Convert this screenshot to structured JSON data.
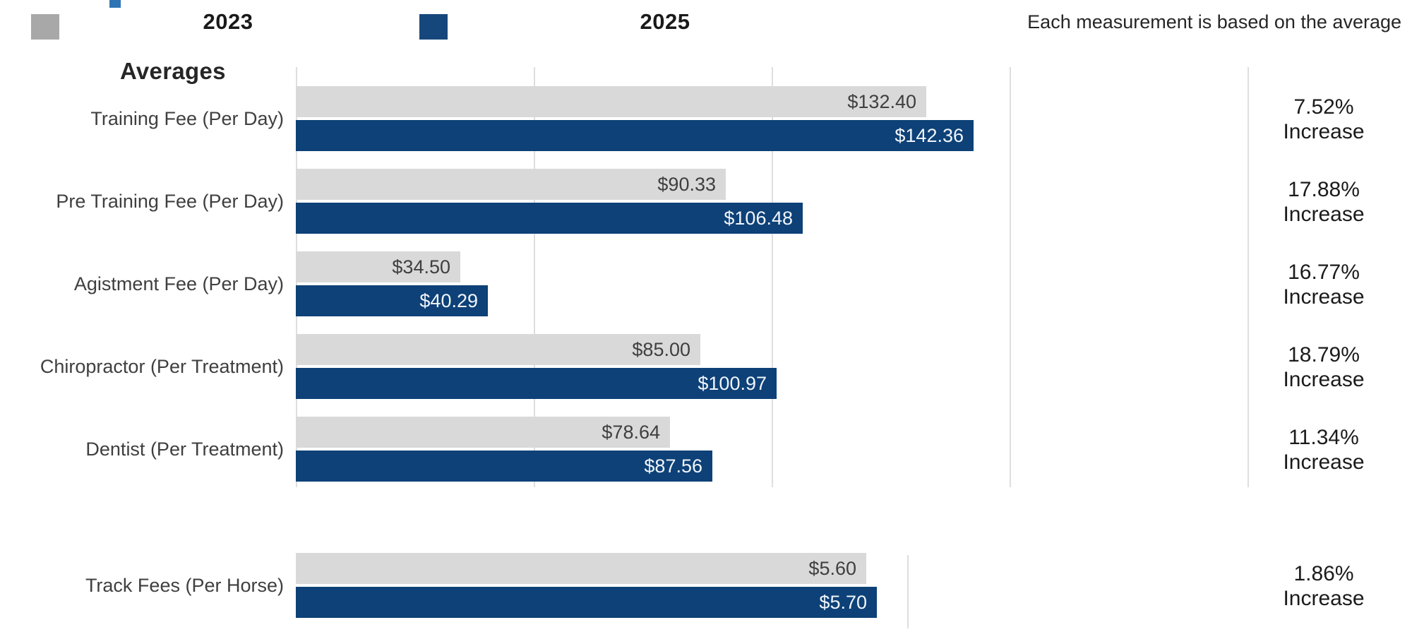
{
  "legend": {
    "items": [
      {
        "label": "2023",
        "swatch_color": "#a8a8a8"
      },
      {
        "label": "2025",
        "swatch_color": "#16477c"
      }
    ]
  },
  "note": "Each measurement is based on the average",
  "section_title": "Averages",
  "colors": {
    "bar_2023": "#d9d9d9",
    "bar_2025": "#0d4177",
    "value_label_on_2023": "#3f3f3f",
    "value_label_on_2025": "#f1f5fb",
    "gridline": "#dedede",
    "logo_fragment": "#2e74b5"
  },
  "chart_data": {
    "type": "bar",
    "orientation": "horizontal",
    "series_names": [
      "2023",
      "2025"
    ],
    "series_colors": [
      "#d9d9d9",
      "#0d4177"
    ],
    "value_label_colors": [
      "#3f3f3f",
      "#f1f5fb"
    ],
    "axes": {
      "main": {
        "min": 0,
        "max": 200,
        "gridline_step": 50,
        "gridlines_at": [
          0,
          50,
          100,
          150,
          200
        ]
      },
      "track": {
        "min": 0,
        "gridlines_at": [
          6
        ]
      }
    },
    "legend_position": "top",
    "grid": "vertical-only",
    "rows": [
      {
        "category": "Training Fee (Per Day)",
        "axis": "main",
        "values": [
          132.4,
          142.36
        ],
        "value_labels": [
          "$132.40",
          "$142.36"
        ],
        "change_pct": "7.52%",
        "change_word": "Increase"
      },
      {
        "category": "Pre Training Fee (Per Day)",
        "axis": "main",
        "values": [
          90.33,
          106.48
        ],
        "value_labels": [
          "$90.33",
          "$106.48"
        ],
        "change_pct": "17.88%",
        "change_word": "Increase"
      },
      {
        "category": "Agistment Fee (Per Day)",
        "axis": "main",
        "values": [
          34.5,
          40.29
        ],
        "value_labels": [
          "$34.50",
          "$40.29"
        ],
        "change_pct": "16.77%",
        "change_word": "Increase"
      },
      {
        "category": "Chiropractor (Per Treatment)",
        "axis": "main",
        "values": [
          85.0,
          100.97
        ],
        "value_labels": [
          "$85.00",
          "$100.97"
        ],
        "change_pct": "18.79%",
        "change_word": "Increase"
      },
      {
        "category": "Dentist (Per Treatment)",
        "axis": "main",
        "values": [
          78.64,
          87.56
        ],
        "value_labels": [
          "$78.64",
          "$87.56"
        ],
        "change_pct": "11.34%",
        "change_word": "Increase"
      },
      {
        "category": "Track Fees (Per Horse)",
        "axis": "track",
        "values": [
          5.6,
          5.7
        ],
        "value_labels": [
          "$5.60",
          "$5.70"
        ],
        "change_pct": "1.86%",
        "change_word": "Increase"
      }
    ]
  }
}
